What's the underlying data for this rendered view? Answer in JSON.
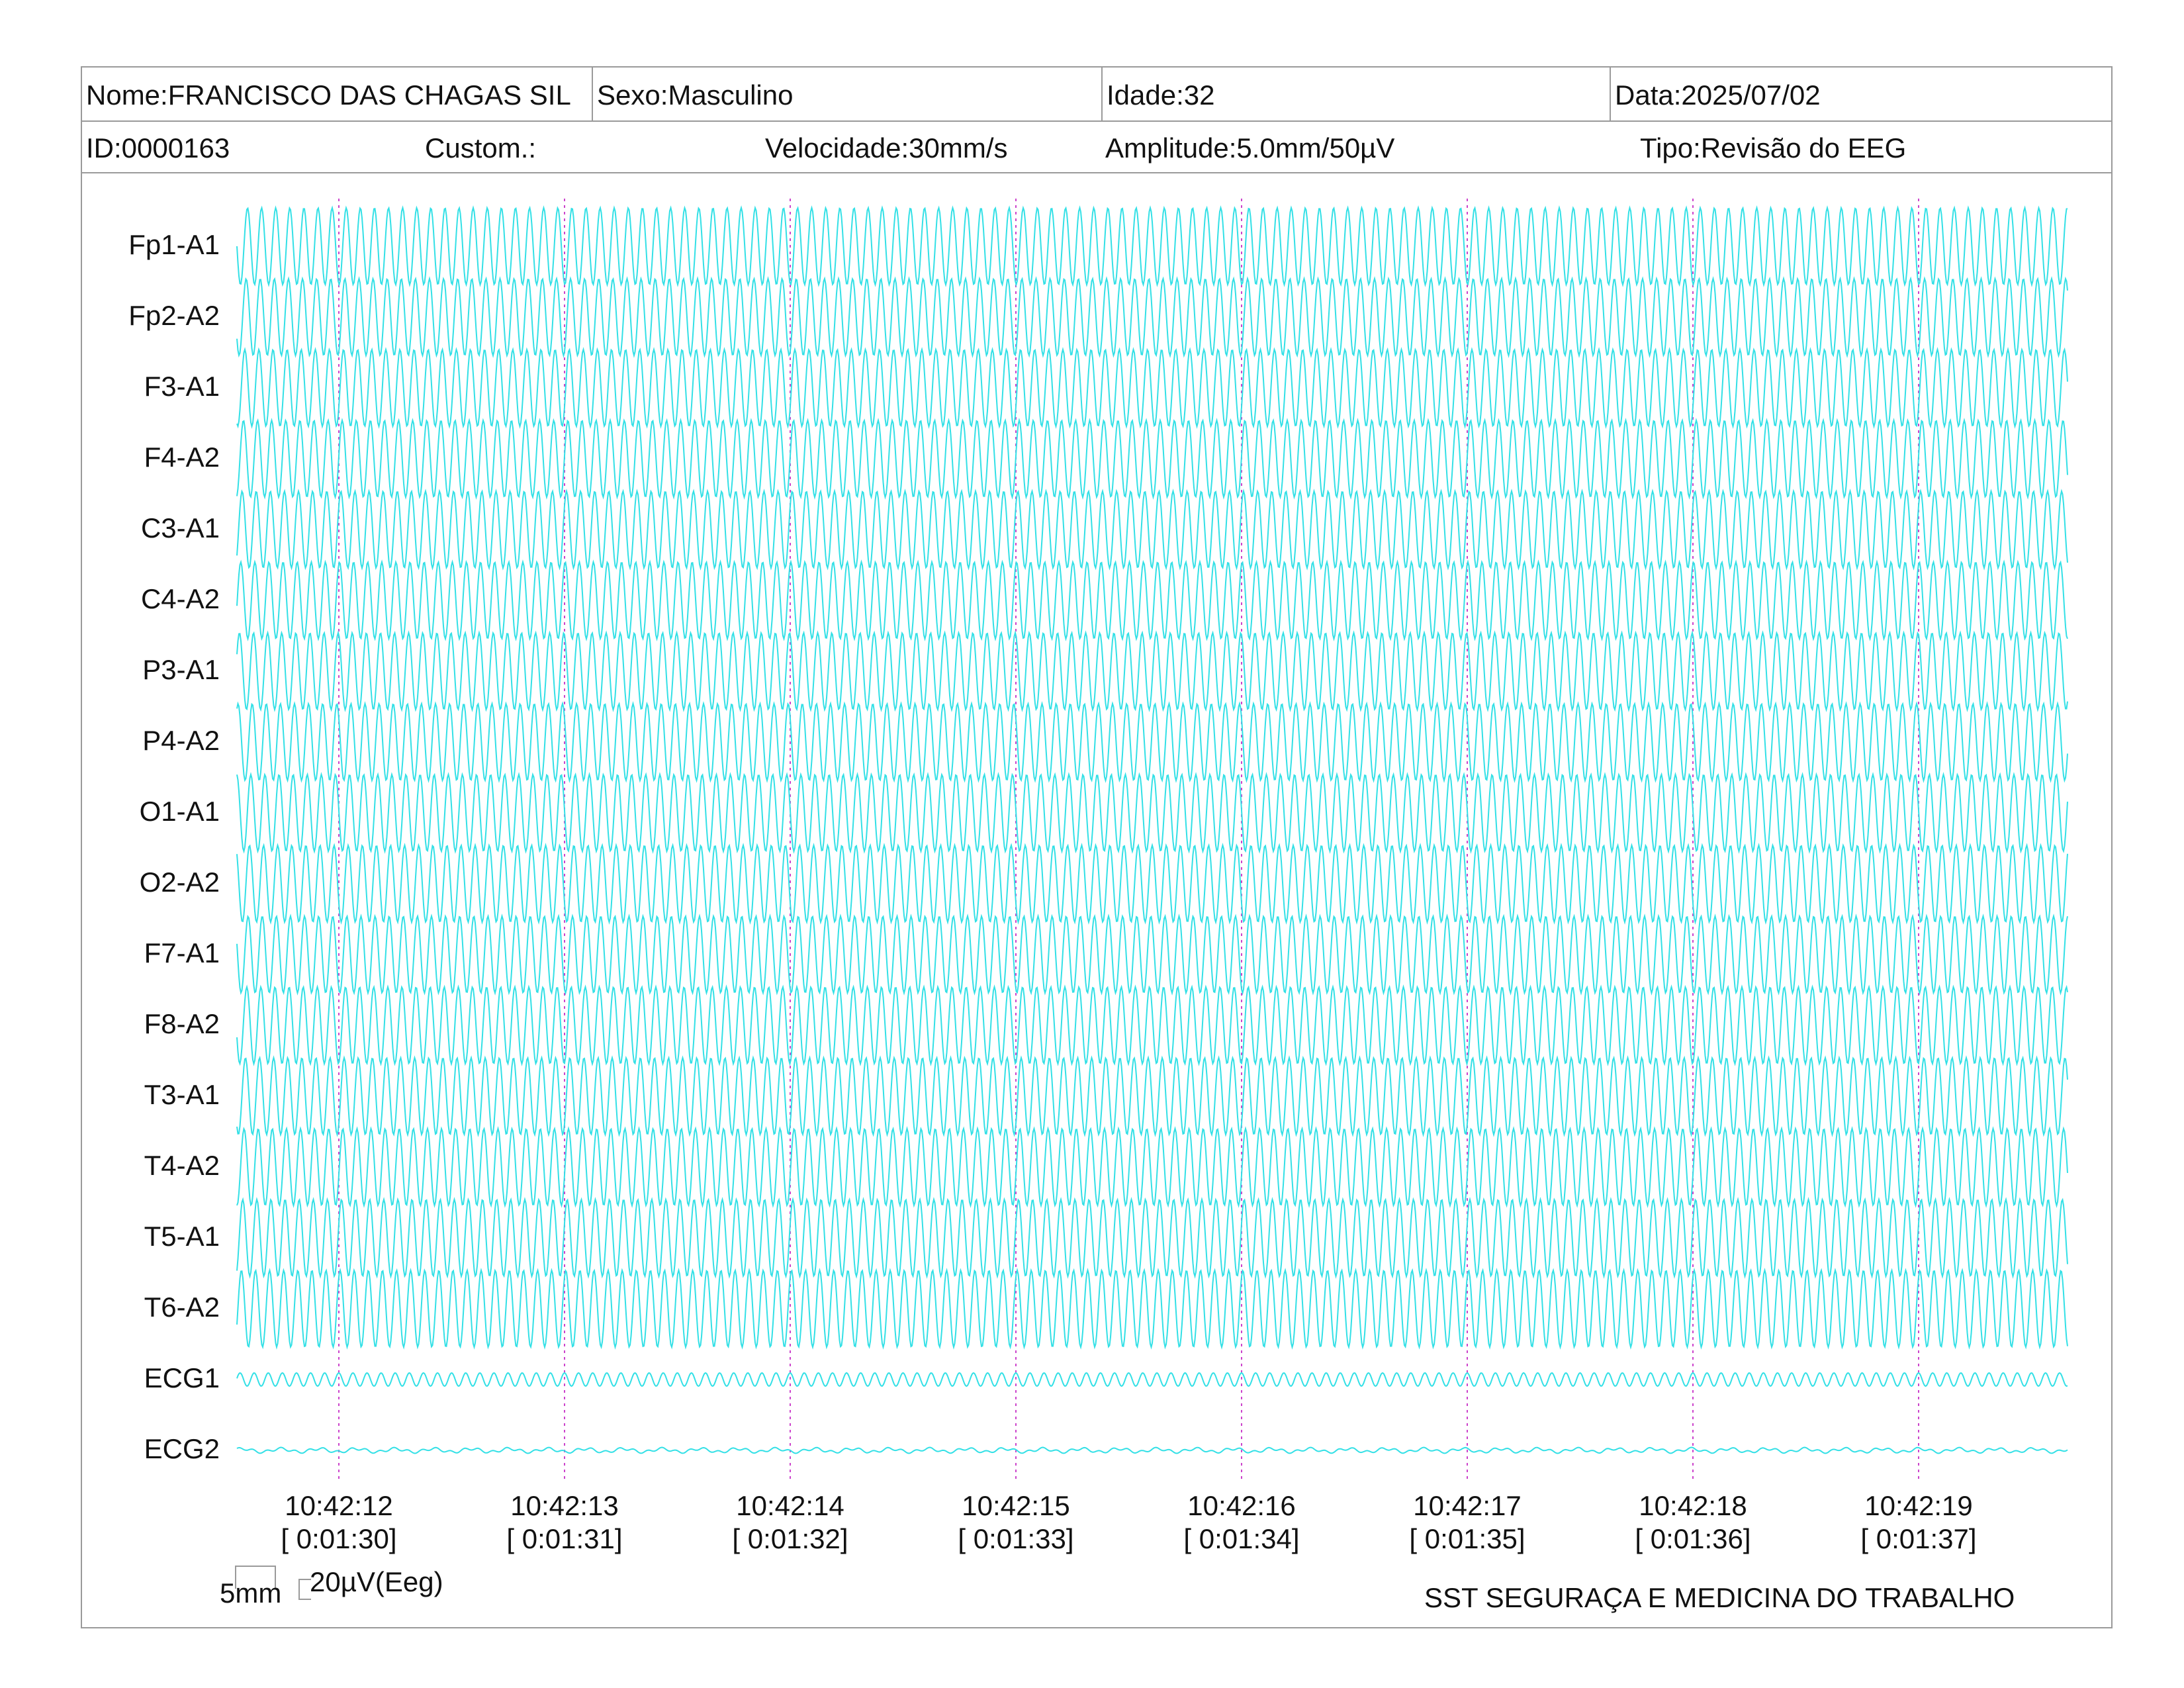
{
  "header": {
    "nome": "Nome:FRANCISCO DAS CHAGAS SIL",
    "sexo": "Sexo:Masculino",
    "idade": "Idade:32",
    "data": "Data:2025/07/02",
    "id": "ID:0000163",
    "custom": "Custom.:",
    "velocidade": "Velocidade:30mm/s",
    "amplitude": "Amplitude:5.0mm/50µV",
    "tipo": "Tipo:Revisão do EEG"
  },
  "colors": {
    "trace": "#33e0e6",
    "time_marker": "#cc44cc",
    "border": "#9a9a9a"
  },
  "chart_data": {
    "type": "line",
    "channels": [
      "Fp1-A1",
      "Fp2-A2",
      "F3-A1",
      "F4-A2",
      "C3-A1",
      "C4-A2",
      "P3-A1",
      "P4-A2",
      "O1-A1",
      "O2-A2",
      "F7-A1",
      "F8-A2",
      "T3-A1",
      "T4-A2",
      "T5-A1",
      "T6-A2",
      "ECG1",
      "ECG2"
    ],
    "time_markers": [
      {
        "clock": "10:42:12",
        "elapsed": "[ 0:01:30]"
      },
      {
        "clock": "10:42:13",
        "elapsed": "[ 0:01:31]"
      },
      {
        "clock": "10:42:14",
        "elapsed": "[ 0:01:32]"
      },
      {
        "clock": "10:42:15",
        "elapsed": "[ 0:01:33]"
      },
      {
        "clock": "10:42:16",
        "elapsed": "[ 0:01:34]"
      },
      {
        "clock": "10:42:17",
        "elapsed": "[ 0:01:35]"
      },
      {
        "clock": "10:42:18",
        "elapsed": "[ 0:01:36]"
      },
      {
        "clock": "10:42:19",
        "elapsed": "[ 0:01:37]"
      }
    ],
    "eeg_cycles_per_second": 16,
    "ecg1_cycles_per_second": 16,
    "ecg2_cycles_per_second": 16
  },
  "scale": {
    "time_label": "5mm",
    "amp_label": "20µV(Eeg)"
  },
  "footer": {
    "company": "SST SEGURAÇA E MEDICINA DO TRABALHO"
  }
}
